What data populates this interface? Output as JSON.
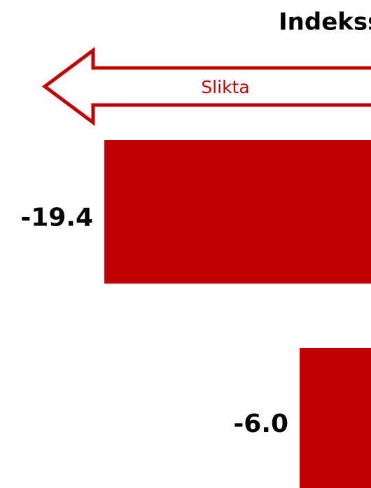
{
  "chart_data": {
    "type": "bar",
    "orientation": "horizontal",
    "title": "Indekss",
    "annotation": "Slikta",
    "values": [
      -19.4,
      -6.0
    ],
    "value_labels": [
      "-19.4",
      "-6.0"
    ],
    "color": "#c00000"
  }
}
